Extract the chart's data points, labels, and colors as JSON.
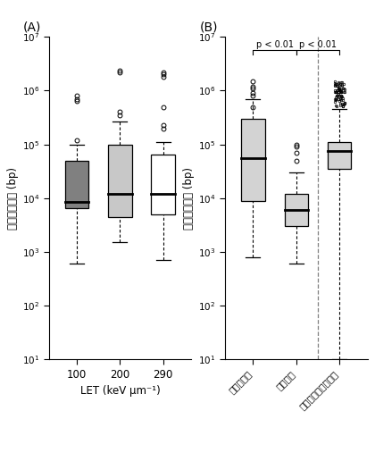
{
  "panel_A": {
    "title": "(A)",
    "ylabel": "欠失の大きさ (bp)",
    "xlabel": "LET (keV μm⁻¹)",
    "xtick_labels": [
      "100",
      "200",
      "290"
    ],
    "boxes": [
      {
        "q1": 6500,
        "median": 8500,
        "q3": 50000,
        "whisker_low": 600,
        "whisker_high": 100000,
        "outliers": [
          800000,
          700000,
          650000,
          120000
        ],
        "color": "#808080"
      },
      {
        "q1": 4500,
        "median": 12000,
        "q3": 100000,
        "whisker_low": 1500,
        "whisker_high": 270000,
        "outliers": [
          400000,
          350000,
          2400000,
          2200000
        ],
        "color": "#c8c8c8"
      },
      {
        "q1": 5000,
        "median": 12000,
        "q3": 65000,
        "whisker_low": 700,
        "whisker_high": 110000,
        "outliers": [
          2200000,
          2000000,
          1800000,
          500000,
          230000,
          200000
        ],
        "color": "#ffffff"
      }
    ]
  },
  "panel_B": {
    "title": "(B)",
    "ylabel": "欠失の大きさ (bp)",
    "xtick_labels": [
      "ヘテロ欠失",
      "ホモ欠失",
      "必須遺伝子間の距離"
    ],
    "sig1_text": "p < 0.01",
    "sig2_text": "p < 0.01",
    "boxes": [
      {
        "q1": 9000,
        "median": 55000,
        "q3": 300000,
        "whisker_low": 800,
        "whisker_high": 700000,
        "outliers": [
          1500000,
          1200000,
          1100000,
          900000,
          800000,
          500000
        ],
        "color": "#d3d3d3"
      },
      {
        "q1": 3000,
        "median": 6000,
        "q3": 12000,
        "whisker_low": 600,
        "whisker_high": 30000,
        "outliers": [
          100000,
          90000,
          70000,
          50000
        ],
        "color": "#d3d3d3"
      },
      {
        "q1": 35000,
        "median": 75000,
        "q3": 110000,
        "whisker_low": 10,
        "whisker_high": 450000,
        "outliers_dense_low": 500000,
        "outliers_dense_high": 1500000,
        "n_dense_outliers": 80,
        "color": "#d3d3d3"
      }
    ]
  }
}
